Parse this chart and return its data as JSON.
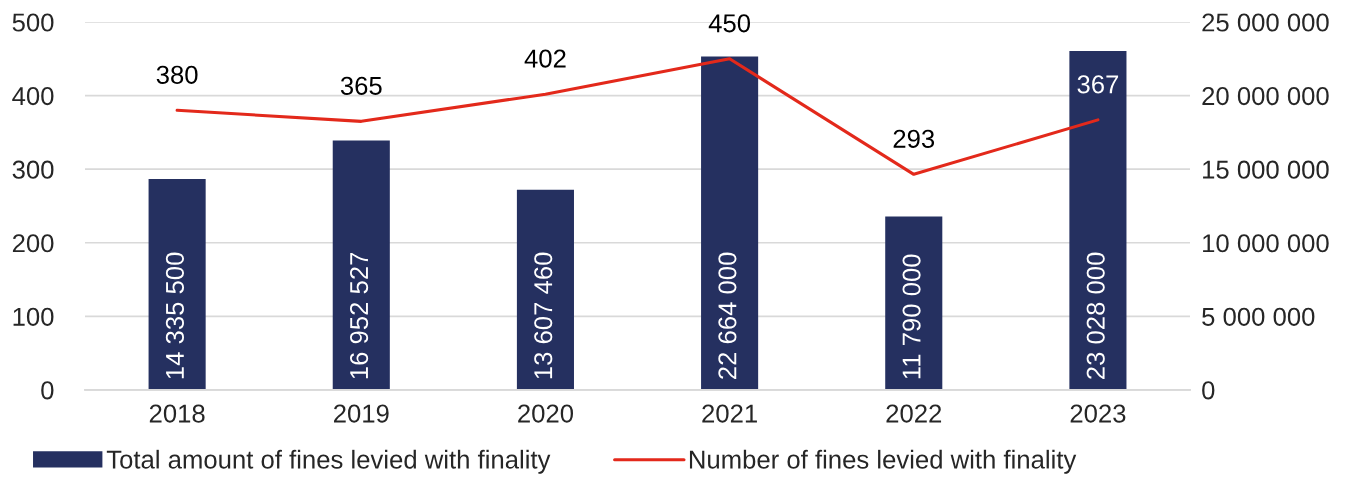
{
  "chart_data": {
    "type": "bar",
    "categories": [
      "2018",
      "2019",
      "2020",
      "2021",
      "2022",
      "2023"
    ],
    "series": [
      {
        "name": "Total amount of fines levied with finality",
        "axis": "y2",
        "color": "#253060",
        "values": [
          14335500,
          16952527,
          13607460,
          22664000,
          11790000,
          23028000
        ],
        "value_labels": [
          "14 335 500",
          "16 952 527",
          "13 607 460",
          "22 664 000",
          "11 790 000",
          "23 028 000"
        ]
      },
      {
        "name": "Number of fines levied with finality",
        "type": "line",
        "color": "#e3291b",
        "line_style": "solid",
        "values": [
          380,
          365,
          402,
          450,
          293,
          367
        ],
        "value_labels": [
          "380",
          "365",
          "402",
          "450",
          "293",
          "367"
        ]
      }
    ],
    "ylim": [
      0,
      500
    ],
    "yticks": [
      0,
      100,
      200,
      300,
      400,
      500
    ],
    "y2lim": [
      0,
      25000000
    ],
    "y2ticks": [
      {
        "value": 0,
        "label": "0"
      },
      {
        "value": 5000000,
        "label": "5 000 000"
      },
      {
        "value": 10000000,
        "label": "10 000 000"
      },
      {
        "value": 15000000,
        "label": "15 000 000"
      },
      {
        "value": 20000000,
        "label": "20 000 000"
      },
      {
        "value": 25000000,
        "label": "25 000 000"
      }
    ],
    "grid": "y",
    "legend": "bottom"
  }
}
